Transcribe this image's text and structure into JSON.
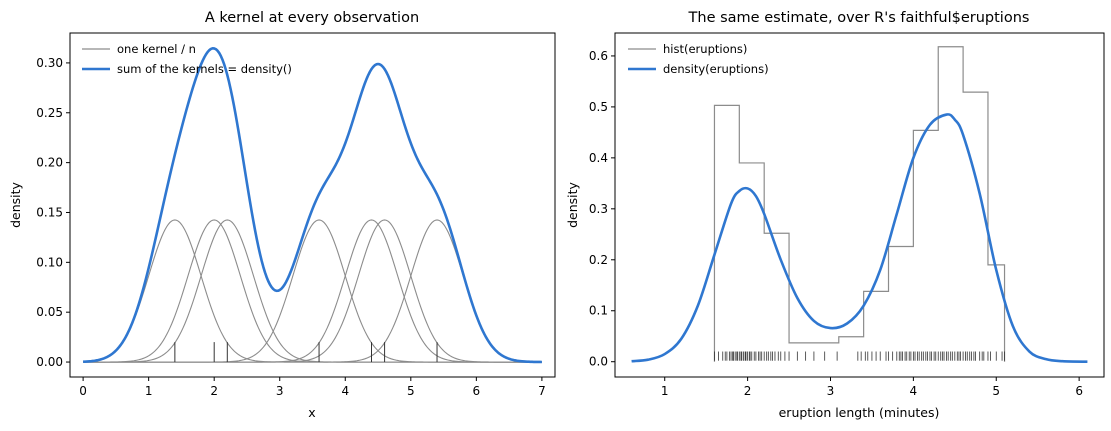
{
  "colors": {
    "kernel": "#8c8c8c",
    "density": "#2f77d0",
    "hist": "#8c8c8c",
    "rug": "#333333",
    "axis": "#000000"
  },
  "chart_data": [
    {
      "type": "line",
      "title": "A kernel at every observation",
      "xlabel": "x",
      "ylabel": "density",
      "xlim": [
        -0.2,
        7.2
      ],
      "ylim": [
        -0.015,
        0.33
      ],
      "xticks": [
        0,
        1,
        2,
        3,
        4,
        5,
        6,
        7
      ],
      "xtick_labels": [
        "0",
        "1",
        "2",
        "3",
        "4",
        "5",
        "6",
        "7"
      ],
      "yticks": [
        0,
        0.05,
        0.1,
        0.15,
        0.2,
        0.25,
        0.3
      ],
      "ytick_labels": [
        "0.00",
        "0.05",
        "0.10",
        "0.15",
        "0.20",
        "0.25",
        "0.30"
      ],
      "observations": [
        1.4,
        2.0,
        2.2,
        3.6,
        4.4,
        4.6,
        5.4
      ],
      "kernel_bandwidth": 0.4,
      "kernel_peak": 0.1425,
      "grid": false,
      "legend_position": "top-left",
      "series": [
        {
          "name": "one kernel / n",
          "role": "kernels"
        },
        {
          "name": "sum of the kernels = density()",
          "role": "density"
        }
      ]
    },
    {
      "type": "line",
      "title": "The same estimate, over R's faithful$eruptions",
      "xlabel": "eruption length (minutes)",
      "ylabel": "density",
      "xlim": [
        0.4,
        6.3
      ],
      "ylim": [
        -0.03,
        0.645
      ],
      "xticks": [
        1,
        2,
        3,
        4,
        5,
        6
      ],
      "xtick_labels": [
        "1",
        "2",
        "3",
        "4",
        "5",
        "6"
      ],
      "yticks": [
        0,
        0.1,
        0.2,
        0.3,
        0.4,
        0.5,
        0.6
      ],
      "ytick_labels": [
        "0.0",
        "0.1",
        "0.2",
        "0.3",
        "0.4",
        "0.5",
        "0.6"
      ],
      "grid": false,
      "legend_position": "top-left",
      "histogram": {
        "name": "hist(eruptions)",
        "breaks": [
          1.6,
          1.9,
          2.2,
          2.5,
          2.8,
          3.1,
          3.4,
          3.7,
          4.0,
          4.3,
          4.6,
          4.9,
          5.1
        ],
        "heights": [
          0.503,
          0.39,
          0.252,
          0.037,
          0.037,
          0.049,
          0.138,
          0.226,
          0.454,
          0.618,
          0.529,
          0.19
        ]
      },
      "density": {
        "name": "density(eruptions)",
        "x": [
          0.6,
          0.8,
          1.0,
          1.2,
          1.4,
          1.6,
          1.8,
          1.9,
          2.0,
          2.1,
          2.2,
          2.4,
          2.6,
          2.8,
          3.0,
          3.2,
          3.4,
          3.6,
          3.8,
          4.0,
          4.2,
          4.4,
          4.5,
          4.6,
          4.8,
          5.0,
          5.2,
          5.4,
          5.6,
          5.8,
          6.1
        ],
        "y": [
          0.001,
          0.004,
          0.015,
          0.045,
          0.11,
          0.21,
          0.31,
          0.335,
          0.34,
          0.325,
          0.29,
          0.2,
          0.125,
          0.08,
          0.066,
          0.075,
          0.11,
          0.18,
          0.29,
          0.4,
          0.465,
          0.485,
          0.475,
          0.445,
          0.33,
          0.18,
          0.07,
          0.02,
          0.005,
          0.001,
          0.0
        ]
      },
      "rug": {
        "positions": [
          1.6,
          1.65,
          1.7,
          1.73,
          1.75,
          1.78,
          1.8,
          1.82,
          1.83,
          1.85,
          1.87,
          1.88,
          1.9,
          1.92,
          1.93,
          1.95,
          1.97,
          1.98,
          2.0,
          2.02,
          2.03,
          2.05,
          2.08,
          2.1,
          2.13,
          2.15,
          2.17,
          2.2,
          2.23,
          2.25,
          2.28,
          2.3,
          2.33,
          2.37,
          2.4,
          2.45,
          2.5,
          2.6,
          2.7,
          2.8,
          2.93,
          3.08,
          3.33,
          3.37,
          3.42,
          3.45,
          3.5,
          3.55,
          3.6,
          3.67,
          3.7,
          3.75,
          3.8,
          3.83,
          3.85,
          3.87,
          3.9,
          3.92,
          3.95,
          3.97,
          4.0,
          4.02,
          4.05,
          4.07,
          4.1,
          4.12,
          4.15,
          4.17,
          4.2,
          4.22,
          4.25,
          4.27,
          4.3,
          4.33,
          4.35,
          4.37,
          4.4,
          4.42,
          4.45,
          4.47,
          4.5,
          4.53,
          4.55,
          4.57,
          4.6,
          4.63,
          4.65,
          4.68,
          4.7,
          4.73,
          4.75,
          4.8,
          4.83,
          4.85,
          4.9,
          4.93,
          5.0,
          5.07,
          5.1
        ]
      }
    }
  ]
}
